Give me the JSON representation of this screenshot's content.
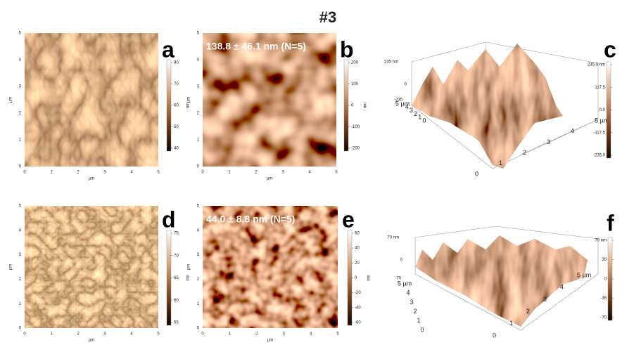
{
  "title": "#3",
  "panels": [
    {
      "letter": "a",
      "x_ticks": [
        "0",
        "1",
        "2",
        "3",
        "4",
        "5"
      ],
      "y_ticks": [
        "0",
        "1",
        "2",
        "3",
        "4",
        "5"
      ],
      "x_unit": "µm",
      "y_unit": "µm",
      "colorbar_ticks": [
        "80",
        "70",
        "60",
        "50",
        "40"
      ],
      "colorbar_unit": "nm"
    },
    {
      "letter": "b",
      "annotation": "138.8 ± 46.1 nm (N=5)",
      "x_ticks": [
        "0",
        "1",
        "2",
        "3",
        "4",
        "5"
      ],
      "y_ticks": [
        "0",
        "1",
        "2",
        "3",
        "4",
        "5"
      ],
      "x_unit": "µm",
      "y_unit": "µm",
      "colorbar_ticks": [
        "200",
        "100",
        "0",
        "-100",
        "-200"
      ],
      "colorbar_unit": "nm"
    },
    {
      "letter": "c",
      "z_labels": [
        "235 nm",
        "0",
        "-235"
      ],
      "x_ticks": [
        "5 µm",
        "4",
        "3",
        "2",
        "1",
        "0"
      ],
      "y_ticks": [
        "0",
        "1",
        "2",
        "3",
        "4",
        "5 µm"
      ],
      "colorbar_ticks": [
        "235.0 nm",
        "117.5",
        "0.0",
        "-117.5",
        "-235.0"
      ]
    },
    {
      "letter": "d",
      "x_ticks": [
        "0",
        "1",
        "2",
        "3",
        "4",
        "5"
      ],
      "y_ticks": [
        "0",
        "1",
        "2",
        "3",
        "4",
        "5"
      ],
      "x_unit": "µm",
      "y_unit": "µm",
      "colorbar_ticks": [
        "75",
        "70",
        "65",
        "60",
        "55"
      ],
      "colorbar_unit": "nm"
    },
    {
      "letter": "e",
      "annotation": "44.0 ± 8.8 nm (N=5)",
      "x_ticks": [
        "0",
        "1",
        "2",
        "3",
        "4",
        "5"
      ],
      "y_ticks": [
        "0",
        "1",
        "2",
        "3",
        "4",
        "5"
      ],
      "x_unit": "µm",
      "y_unit": "µm",
      "colorbar_ticks": [
        "60",
        "40",
        "20",
        "0",
        "-20",
        "-40",
        "-60"
      ],
      "colorbar_unit": "nm"
    },
    {
      "letter": "f",
      "z_labels": [
        "70 nm",
        "0",
        "-70"
      ],
      "x_ticks": [
        "5 µm",
        "4",
        "3",
        "2",
        "1",
        "0"
      ],
      "y_ticks": [
        "0",
        "1",
        "2",
        "3",
        "4",
        "5 µm"
      ],
      "colorbar_ticks": [
        "70 nm",
        "35",
        "0",
        "-35",
        "-70"
      ]
    }
  ]
}
